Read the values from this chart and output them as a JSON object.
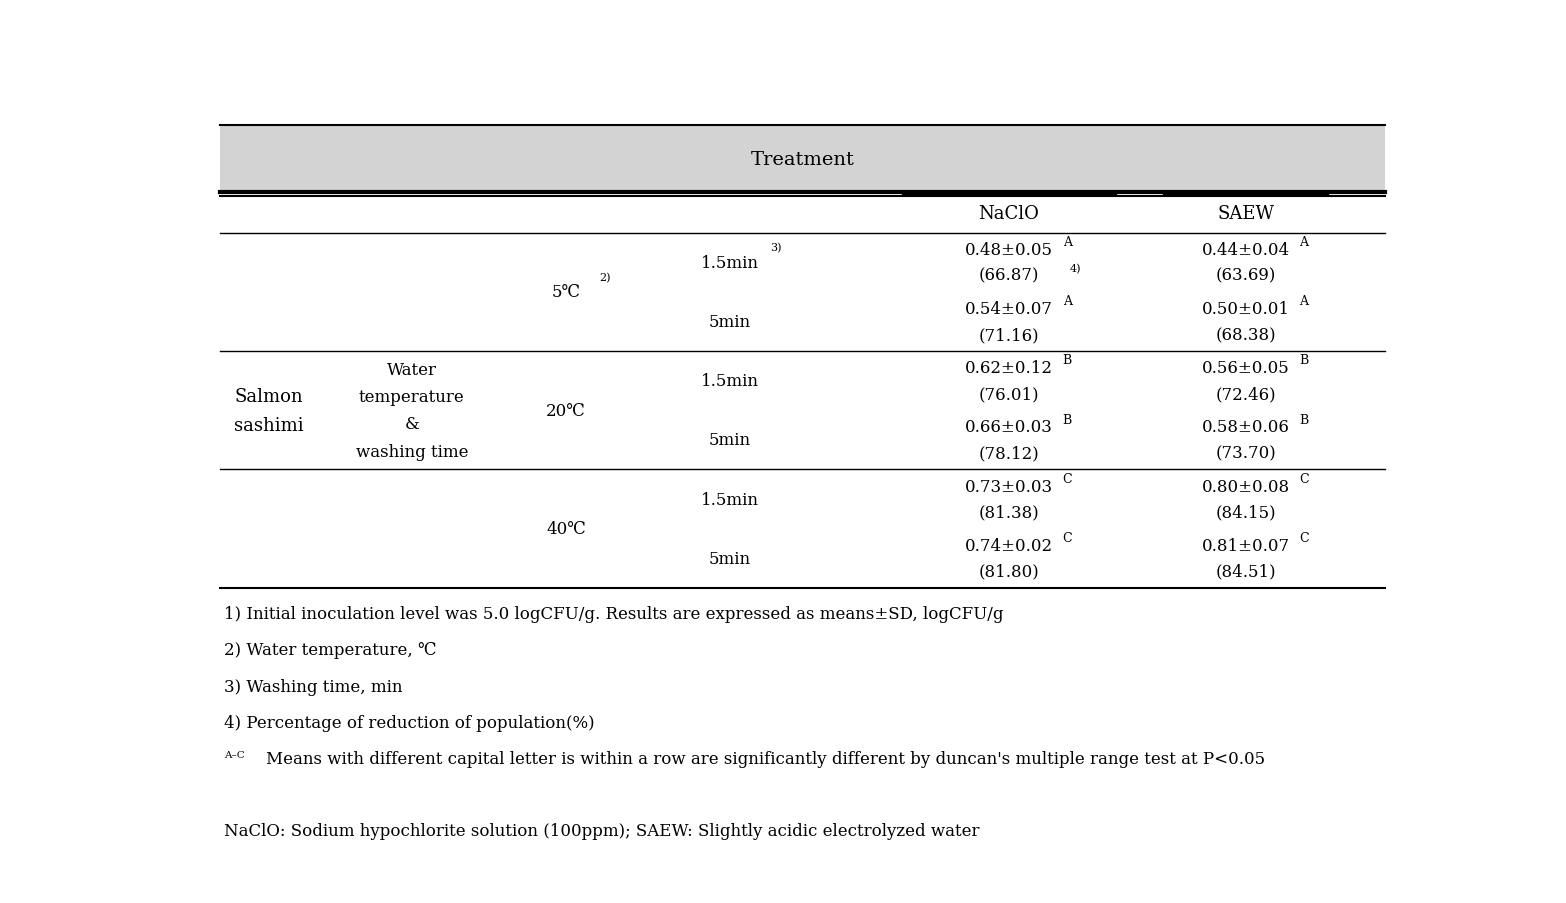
{
  "title": "Treatment",
  "header_bg": "#d3d3d3",
  "col_headers": [
    "NaClO",
    "SAEW"
  ],
  "footnotes": [
    "1) Initial inoculation level was 5.0 logCFU/g. Results are expressed as means±SD, logCFU/g",
    "2) Water temperature, ℃",
    "3) Washing time, min",
    "4) Percentage of reduction of population(%)",
    "A-CMeans with different capital letter is within a row are significantly different by duncan's multiple range test at P<0.05",
    "",
    "NaClO: Sodium hypochlorite solution (100ppm); SAEW: Slightly acidic electrolyzed water"
  ],
  "rows": [
    {
      "naclo_val": "0.48±0.05",
      "naclo_sup": "A",
      "naclo_pct": "(66.87)",
      "naclo_pct_sup": "4)",
      "saew_val": "0.44±0.04",
      "saew_sup": "A",
      "saew_pct": "(63.69)",
      "saew_pct_sup": ""
    },
    {
      "naclo_val": "0.54±0.07",
      "naclo_sup": "A",
      "naclo_pct": "(71.16)",
      "naclo_pct_sup": "",
      "saew_val": "0.50±0.01",
      "saew_sup": "A",
      "saew_pct": "(68.38)",
      "saew_pct_sup": ""
    },
    {
      "naclo_val": "0.62±0.12",
      "naclo_sup": "B",
      "naclo_pct": "(76.01)",
      "naclo_pct_sup": "",
      "saew_val": "0.56±0.05",
      "saew_sup": "B",
      "saew_pct": "(72.46)",
      "saew_pct_sup": ""
    },
    {
      "naclo_val": "0.66±0.03",
      "naclo_sup": "B",
      "naclo_pct": "(78.12)",
      "naclo_pct_sup": "",
      "saew_val": "0.58±0.06",
      "saew_sup": "B",
      "saew_pct": "(73.70)",
      "saew_pct_sup": ""
    },
    {
      "naclo_val": "0.73±0.03",
      "naclo_sup": "C",
      "naclo_pct": "(81.38)",
      "naclo_pct_sup": "",
      "saew_val": "0.80±0.08",
      "saew_sup": "C",
      "saew_pct": "(84.15)",
      "saew_pct_sup": ""
    },
    {
      "naclo_val": "0.74±0.02",
      "naclo_sup": "C",
      "naclo_pct": "(81.80)",
      "naclo_pct_sup": "",
      "saew_val": "0.81±0.07",
      "saew_sup": "C",
      "saew_pct": "(84.51)",
      "saew_pct_sup": ""
    }
  ],
  "time_labels": [
    "1.5min",
    "5min",
    "1.5min",
    "5min",
    "1.5min",
    "5min"
  ],
  "time_sups": [
    "3)",
    "",
    "",
    "",
    "",
    ""
  ],
  "temp_groups": [
    {
      "label": "5℃",
      "sup": "2)",
      "r0": 0,
      "r1": 2
    },
    {
      "label": "20℃",
      "sup": "",
      "r0": 2,
      "r1": 4
    },
    {
      "label": "40℃",
      "sup": "",
      "r0": 4,
      "r1": 6
    }
  ]
}
